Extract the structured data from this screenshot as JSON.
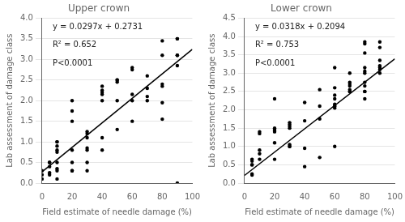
{
  "chart_data": [
    {
      "type": "scatter",
      "title": "Upper crown",
      "x_label": "Field estimate of needle damage (%)",
      "y_label": "Lab assessment of damage class",
      "annotations": [
        "y = 0.0297x + 0.2731",
        "R² = 0.652",
        "P<0.0001"
      ],
      "xlim": [
        0,
        100
      ],
      "xticks": [
        0,
        20,
        40,
        60,
        80,
        100
      ],
      "ylim": [
        0,
        4.0
      ],
      "yticks": [
        {
          "value": 0,
          "label": "0.0"
        },
        0.5,
        {
          "value": 1.0,
          "label": "1.0"
        },
        1.5,
        {
          "value": 2.0,
          "label": "2.0"
        },
        2.5,
        {
          "value": 3.0,
          "label": "3.0"
        },
        3.5,
        {
          "value": 4.0,
          "label": "4.0"
        }
      ],
      "grid": "y",
      "series": [
        {
          "type": "scatter",
          "color": "black",
          "marker": "circle",
          "x": [
            0,
            0,
            0,
            5,
            5,
            5,
            5,
            5,
            10,
            10,
            10,
            10,
            10,
            10,
            10,
            10,
            10,
            20,
            20,
            20,
            20,
            20,
            20,
            20,
            30,
            30,
            30,
            30,
            30,
            30,
            30,
            40,
            40,
            40,
            40,
            40,
            40,
            40,
            50,
            50,
            50,
            50,
            50,
            60,
            60,
            60,
            60,
            60,
            70,
            70,
            70,
            70,
            80,
            80,
            80,
            80,
            80,
            80,
            90,
            90,
            90,
            90,
            90,
            90
          ],
          "values": [
            0.1,
            0.3,
            0.2,
            0.5,
            0.5,
            0.4,
            0.2,
            0.25,
            1.0,
            1.0,
            0.9,
            0.8,
            0.75,
            0.5,
            0.3,
            0.35,
            0.1,
            2.0,
            1.75,
            1.5,
            0.5,
            0.3,
            0.3,
            0.8,
            1.25,
            1.2,
            1.1,
            0.85,
            0.8,
            0.5,
            0.3,
            2.35,
            2.25,
            2.0,
            2.15,
            2.2,
            1.1,
            0.8,
            2.5,
            2.5,
            2.45,
            2.0,
            1.3,
            2.8,
            2.75,
            2.15,
            2.0,
            1.5,
            2.6,
            2.3,
            2.1,
            2.0,
            3.45,
            3.1,
            2.4,
            2.35,
            1.95,
            1.55,
            3.5,
            3.5,
            3.1,
            3.1,
            2.85,
            0.0
          ]
        },
        {
          "type": "line",
          "color": "black",
          "line_style": "solid",
          "x": [
            0,
            100
          ],
          "values": [
            0.2731,
            3.2431
          ]
        }
      ]
    },
    {
      "type": "scatter",
      "title": "Lower crown",
      "x_label": "Field estimate of needle damage (%)",
      "y_label": "Lab assessment of damage class",
      "annotations": [
        "y = 0.0318x + 0.2094",
        "R² = 0.753",
        "P<0.0001"
      ],
      "xlim": [
        0,
        100
      ],
      "xticks": [
        0,
        20,
        40,
        60,
        80,
        100
      ],
      "ylim": [
        0,
        4.5
      ],
      "yticks": [
        {
          "value": 0,
          "label": "0.0"
        },
        0.5,
        {
          "value": 1.0,
          "label": "1.0"
        },
        1.5,
        {
          "value": 2.0,
          "label": "2.0"
        },
        2.5,
        {
          "value": 3.0,
          "label": "3.0"
        },
        3.5,
        {
          "value": 4.0,
          "label": "4.0"
        },
        4.5
      ],
      "grid": "y",
      "series": [
        {
          "type": "scatter",
          "color": "black",
          "marker": "circle",
          "x": [
            5,
            5,
            5,
            5,
            5,
            5,
            10,
            10,
            10,
            10,
            10,
            20,
            20,
            20,
            20,
            20,
            20,
            30,
            30,
            30,
            30,
            30,
            30,
            30,
            40,
            40,
            40,
            40,
            50,
            50,
            50,
            50,
            60,
            60,
            60,
            60,
            60,
            60,
            60,
            60,
            60,
            70,
            70,
            70,
            70,
            70,
            70,
            70,
            80,
            80,
            80,
            80,
            80,
            80,
            80,
            80,
            80,
            80,
            80,
            90,
            90,
            90,
            90,
            90,
            90,
            90
          ],
          "values": [
            0.65,
            0.6,
            0.5,
            0.5,
            0.25,
            0.22,
            1.4,
            1.35,
            0.9,
            0.8,
            0.65,
            2.3,
            1.5,
            1.45,
            1.4,
            1.1,
            0.65,
            1.65,
            1.6,
            1.55,
            1.5,
            1.05,
            1.0,
            1.0,
            2.2,
            1.7,
            0.95,
            0.45,
            2.55,
            2.1,
            1.75,
            0.7,
            3.15,
            2.6,
            2.4,
            2.3,
            2.15,
            2.1,
            2.1,
            2.05,
            1.0,
            3.0,
            2.75,
            2.7,
            2.65,
            2.55,
            2.5,
            2.5,
            3.85,
            3.8,
            3.55,
            3.15,
            3.05,
            3.0,
            2.75,
            2.65,
            2.5,
            2.5,
            2.3,
            3.85,
            3.7,
            3.35,
            3.2,
            3.15,
            3.1,
            3.0
          ]
        },
        {
          "type": "line",
          "color": "black",
          "line_style": "solid",
          "x": [
            0,
            100
          ],
          "values": [
            0.2094,
            3.3894
          ]
        }
      ]
    }
  ]
}
